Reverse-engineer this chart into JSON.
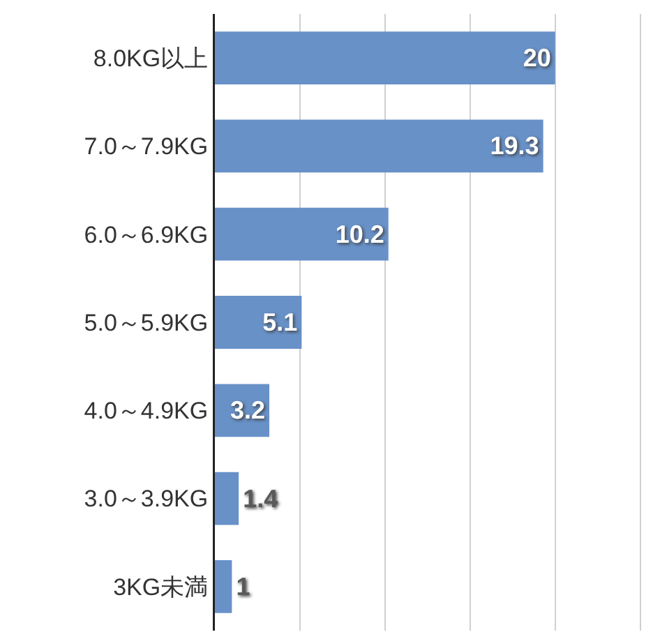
{
  "chart_data": {
    "type": "bar",
    "orientation": "horizontal",
    "categories": [
      "8.0KG以上",
      "7.0～7.9KG",
      "6.0～6.9KG",
      "5.0～5.9KG",
      "4.0～4.9KG",
      "3.0～3.9KG",
      "3KG未満"
    ],
    "values": [
      20,
      19.3,
      10.2,
      5.1,
      3.2,
      1.4,
      1
    ],
    "color": "#6891c8",
    "xlim": [
      0,
      26
    ],
    "xticks": [
      {
        "value": 0,
        "label": null
      },
      {
        "value": 5,
        "label": null
      },
      {
        "value": 10,
        "label": null
      },
      {
        "value": 15,
        "label": null
      },
      {
        "value": 20,
        "label": null
      },
      {
        "value": 25,
        "label": null
      }
    ],
    "grid": "x",
    "tick_labels": "y",
    "data_labels": true
  }
}
